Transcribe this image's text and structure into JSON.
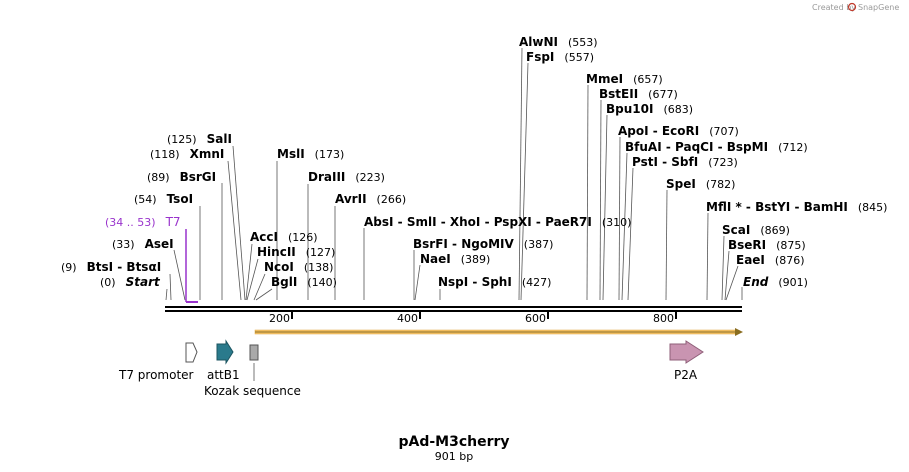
{
  "credit": {
    "prefix": "Created by",
    "brand": "SnapGene"
  },
  "map": {
    "name": "pAd-M3cherry",
    "length_label": "901 bp",
    "length": 901
  },
  "axis_ticks": [
    "200",
    "400",
    "600",
    "800"
  ],
  "features": {
    "t7_promoter": "T7 promoter",
    "attb1": "attB1",
    "kozak": "Kozak sequence",
    "p2a": "P2A"
  },
  "colors": {
    "purple": "#9933cc",
    "attb1": "#2a7a8c",
    "p2a": "#c994b1",
    "orf": "#f5c46b"
  },
  "labels": [
    {
      "name": "AlwNI",
      "pos": "(553)"
    },
    {
      "name": "FspI",
      "pos": "(557)"
    },
    {
      "name": "MmeI",
      "pos": "(657)"
    },
    {
      "name": "BstEII",
      "pos": "(677)"
    },
    {
      "name": "Bpu10I",
      "pos": "(683)"
    },
    {
      "name": "ApoI - EcoRI",
      "pos": "(707)"
    },
    {
      "name": "BfuAI - PaqCI - BspMI",
      "pos": "(712)"
    },
    {
      "name": "PstI - SbfI",
      "pos": "(723)"
    },
    {
      "name": "SpeI",
      "pos": "(782)"
    },
    {
      "name": "MflI * - BstYI - BamHI",
      "pos": "(845)"
    },
    {
      "name": "ScaI",
      "pos": "(869)"
    },
    {
      "name": "BseRI",
      "pos": "(875)"
    },
    {
      "name": "EaeI",
      "pos": "(876)"
    },
    {
      "name": "End",
      "pos": "(901)"
    },
    {
      "name": "SalI",
      "pos": "(125)"
    },
    {
      "name": "XmnI",
      "pos": "(118)"
    },
    {
      "name": "BsrGI",
      "pos": "(89)"
    },
    {
      "name": "TsoI",
      "pos": "(54)"
    },
    {
      "name": "T7",
      "pos": "(34 .. 53)"
    },
    {
      "name": "AseI",
      "pos": "(33)"
    },
    {
      "name": "BtsI - BtsαI",
      "pos": "(9)"
    },
    {
      "name": "Start",
      "pos": "(0)"
    },
    {
      "name": "MslI",
      "pos": "(173)"
    },
    {
      "name": "DraIII",
      "pos": "(223)"
    },
    {
      "name": "AvrII",
      "pos": "(266)"
    },
    {
      "name": "AbsI - SmlI - XhoI - PspXI - PaeR7I",
      "pos": "(310)"
    },
    {
      "name": "AccI",
      "pos": "(126)"
    },
    {
      "name": "HincII",
      "pos": "(127)"
    },
    {
      "name": "NcoI",
      "pos": "(138)"
    },
    {
      "name": "BglI",
      "pos": "(140)"
    },
    {
      "name": "BsrFI - NgoMIV",
      "pos": "(387)"
    },
    {
      "name": "NaeI",
      "pos": "(389)"
    },
    {
      "name": "NspI - SphI",
      "pos": "(427)"
    }
  ]
}
